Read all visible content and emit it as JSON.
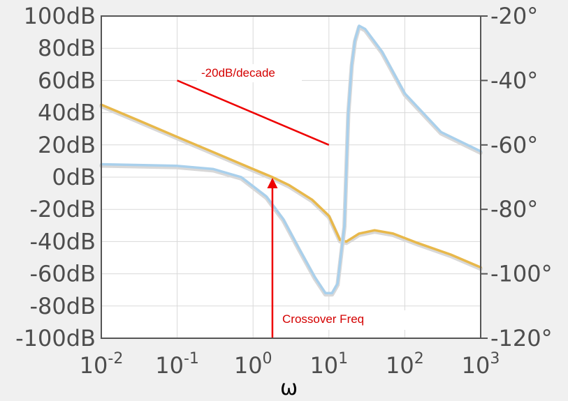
{
  "chart_data": {
    "type": "line",
    "title": "",
    "xlabel": "ω",
    "ylabel": "",
    "y2label": "",
    "xscale": "log",
    "xlim": [
      0.01,
      1000
    ],
    "ylim": [
      -100,
      100
    ],
    "y2lim": [
      -120,
      -20
    ],
    "grid": true,
    "x_ticks": [
      {
        "base": "10",
        "exp": "-2",
        "value": 0.01
      },
      {
        "base": "10",
        "exp": "-1",
        "value": 0.1
      },
      {
        "base": "10",
        "exp": "0",
        "value": 1
      },
      {
        "base": "10",
        "exp": "1",
        "value": 10
      },
      {
        "base": "10",
        "exp": "2",
        "value": 100
      },
      {
        "base": "10",
        "exp": "3",
        "value": 1000
      }
    ],
    "y_ticks": [
      {
        "label": "100dB",
        "value": 100
      },
      {
        "label": "80dB",
        "value": 80
      },
      {
        "label": "60dB",
        "value": 60
      },
      {
        "label": "40dB",
        "value": 40
      },
      {
        "label": "20dB",
        "value": 20
      },
      {
        "label": "0dB",
        "value": 0
      },
      {
        "label": "-20dB",
        "value": -20
      },
      {
        "label": "-40dB",
        "value": -40
      },
      {
        "label": "-60dB",
        "value": -60
      },
      {
        "label": "-80dB",
        "value": -80
      },
      {
        "label": "-100dB",
        "value": -100
      }
    ],
    "y2_ticks": [
      {
        "label": "-20°",
        "value": -20
      },
      {
        "label": "-40°",
        "value": -40
      },
      {
        "label": "-60°",
        "value": -60
      },
      {
        "label": "-80°",
        "value": -80
      },
      {
        "label": "-100°",
        "value": -100
      },
      {
        "label": "-120°",
        "value": -120
      }
    ],
    "series": [
      {
        "color": "#e8b84a",
        "axis": "left",
        "points": [
          [
            0.01,
            45
          ],
          [
            0.03,
            35.5
          ],
          [
            0.1,
            25
          ],
          [
            0.3,
            15.5
          ],
          [
            1,
            5
          ],
          [
            1.8,
            0
          ],
          [
            3,
            -5
          ],
          [
            6,
            -14
          ],
          [
            10,
            -24
          ],
          [
            14,
            -39
          ],
          [
            17,
            -40
          ],
          [
            25,
            -35
          ],
          [
            40,
            -33
          ],
          [
            70,
            -35
          ],
          [
            150,
            -41
          ],
          [
            400,
            -48
          ],
          [
            1000,
            -56
          ]
        ]
      },
      {
        "color": "#a9d0ec",
        "axis": "right",
        "points": [
          [
            0.01,
            -66
          ],
          [
            0.1,
            -66.5
          ],
          [
            0.3,
            -67.5
          ],
          [
            0.7,
            -70
          ],
          [
            1.5,
            -76
          ],
          [
            2.5,
            -83
          ],
          [
            4,
            -92
          ],
          [
            6.5,
            -101
          ],
          [
            9,
            -106
          ],
          [
            11,
            -106
          ],
          [
            13,
            -103
          ],
          [
            16,
            -85
          ],
          [
            18,
            -50
          ],
          [
            20,
            -35
          ],
          [
            22,
            -27.5
          ],
          [
            25,
            -23
          ],
          [
            30,
            -24
          ],
          [
            50,
            -31
          ],
          [
            100,
            -44
          ],
          [
            300,
            -56
          ],
          [
            1000,
            -62
          ]
        ]
      }
    ],
    "annotations": {
      "slope_label": "-20dB/decade",
      "crossover_label": "Crossover Freq",
      "slope_line": [
        [
          0.1,
          60
        ],
        [
          10,
          20
        ]
      ],
      "arrow": {
        "x": 1.8,
        "from": -100,
        "to": 0
      },
      "color": "#ee0000"
    }
  }
}
